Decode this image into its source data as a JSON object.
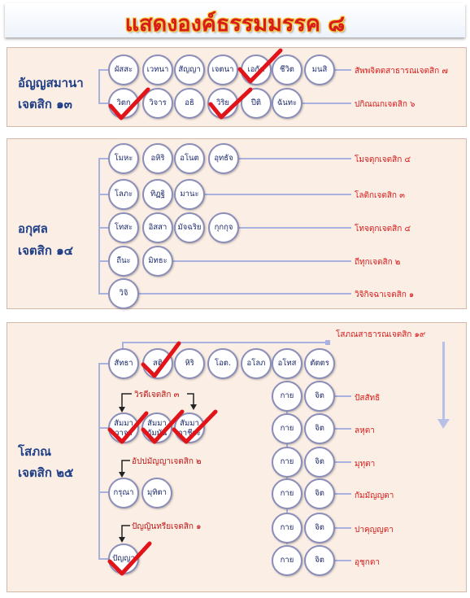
{
  "title": "แสดงองค์ธรรมมรรค ๘",
  "section1": {
    "label_line1": "อัญญสมานา",
    "label_line2": "เจตสิก ๑๓",
    "row1": [
      "ผัสสะ",
      "เวทนา",
      "สัญญา",
      "เจตนา",
      "เอกัค",
      "ชีวิต",
      "มนสิ"
    ],
    "row1_label": "สัพพจิตตสาธารณเจตสิก ๗",
    "row2": [
      "วิตก",
      "วิจาร",
      "อธิ",
      "วิริย",
      "ปีติ",
      "ฉันทะ"
    ],
    "row2_label": "ปกิณณกเจตสิก ๖"
  },
  "section2": {
    "label_line1": "อกุศล",
    "label_line2": "เจตสิก ๑๔",
    "row1": [
      "โมหะ",
      "อหิริ",
      "อโนต",
      "อุทธัจ"
    ],
    "row1_label": "โมจตุกเจตสิก ๔",
    "row2": [
      "โลภะ",
      "ทิฏฐิ",
      "มานะ"
    ],
    "row2_label": "โลติกเจตสิก ๓",
    "row3": [
      "โทสะ",
      "อิสสา",
      "มัจฉริย",
      "กุกกุจ"
    ],
    "row3_label": "โทจตุกเจตสิก ๔",
    "row4": [
      "ถีนะ",
      "มิทธะ"
    ],
    "row4_label": "ถีทุกเจตสิก ๒",
    "row5": [
      "วิจิ"
    ],
    "row5_label": "วิจิกิจฉาเจตสิก ๑"
  },
  "section3": {
    "label_line1": "โสภณ",
    "label_line2": "เจตสิก ๒๕",
    "top_label": "โสภณสาธารณเจตสิก ๑๙",
    "top_row": [
      "สัทธา",
      "สติ",
      "หิริ",
      "โอต.",
      "อโลภ",
      "อโทส",
      "ตัตตร"
    ],
    "pairs": [
      {
        "a": "กาย",
        "b": "จิต",
        "label": "ปัสสัทธิ"
      },
      {
        "a": "กาย",
        "b": "จิต",
        "label": "ลหุตา"
      },
      {
        "a": "กาย",
        "b": "จิต",
        "label": "มุทุตา"
      },
      {
        "a": "กาย",
        "b": "จิต",
        "label": "กัมมัญญตา"
      },
      {
        "a": "กาย",
        "b": "จิต",
        "label": "ปาคุญญตา"
      },
      {
        "a": "กาย",
        "b": "จิต",
        "label": "อุชุกตา"
      }
    ],
    "virati_label": "วิรตีเจตสิก ๓",
    "virati": [
      "สัมมาวาจา",
      "สัมมากัมมัน",
      "สัมมาอาชีวะ"
    ],
    "appamanna_label": "อัปปมัญญาเจตสิก ๒",
    "appamanna": [
      "กรุณา",
      "มุทิตา"
    ],
    "panna_label": "ปัญญินทรียเจตสิก ๑",
    "panna": [
      "ปัญญา"
    ]
  },
  "colors": {
    "accent_red": "#d81b1b",
    "node_text": "#1c2a6b",
    "connector": "#a9b2de",
    "panel_bg": "#fbeee4"
  }
}
